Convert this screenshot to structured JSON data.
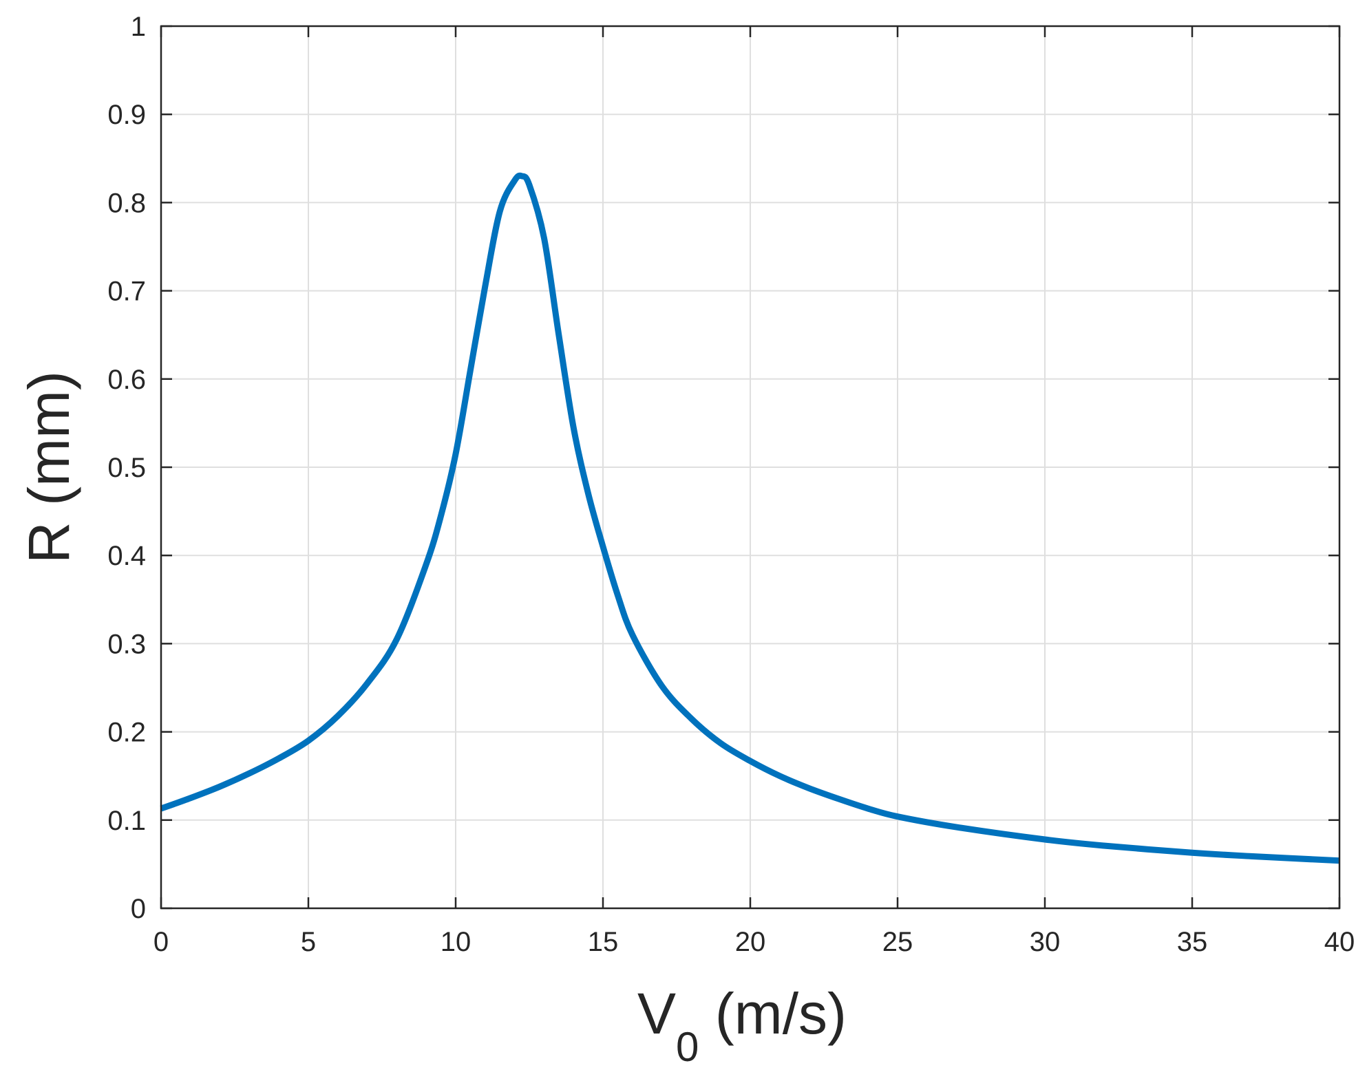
{
  "chart_data": {
    "type": "line",
    "xlabel": "V",
    "xlabel_sub": "0",
    "xlabel_unit": " (m/s)",
    "ylabel": "R (mm)",
    "xlim": [
      0,
      40
    ],
    "ylim": [
      0,
      1
    ],
    "xticks": [
      "0",
      "5",
      "10",
      "15",
      "20",
      "25",
      "30",
      "35",
      "40"
    ],
    "yticks": [
      "0",
      "0.1",
      "0.2",
      "0.3",
      "0.4",
      "0.5",
      "0.6",
      "0.7",
      "0.8",
      "0.9",
      "1"
    ],
    "grid": true,
    "line_color": "#0072BD",
    "series": [
      {
        "x": [
          0,
          1,
          2,
          3,
          4,
          5,
          6,
          7,
          8,
          9,
          9.5,
          10,
          10.5,
          11,
          11.5,
          12,
          12.25,
          12.5,
          13,
          13.5,
          14,
          14.5,
          15,
          15.5,
          16,
          17,
          18,
          19,
          20,
          21,
          22,
          23,
          24,
          25,
          27,
          30,
          32,
          35,
          37,
          40
        ],
        "y": [
          0.113,
          0.125,
          0.138,
          0.153,
          0.17,
          0.19,
          0.218,
          0.255,
          0.305,
          0.39,
          0.445,
          0.515,
          0.61,
          0.705,
          0.79,
          0.825,
          0.83,
          0.82,
          0.76,
          0.65,
          0.545,
          0.47,
          0.41,
          0.355,
          0.31,
          0.252,
          0.215,
          0.187,
          0.167,
          0.15,
          0.136,
          0.124,
          0.113,
          0.104,
          0.092,
          0.078,
          0.071,
          0.063,
          0.059,
          0.054
        ]
      }
    ]
  }
}
